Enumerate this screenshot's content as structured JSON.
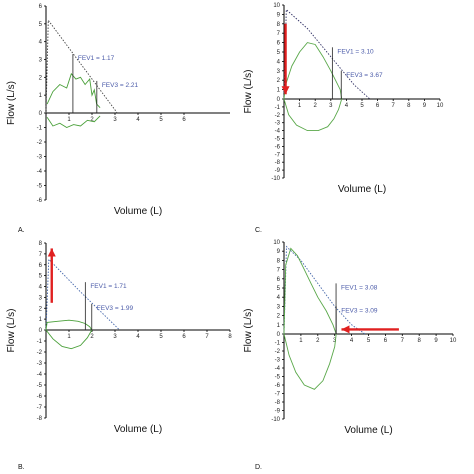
{
  "chart_data": [
    {
      "type": "line",
      "panel_label": "A.",
      "xlabel": "Volume (L)",
      "ylabel": "Flow (L/s)",
      "xlim": [
        0,
        8
      ],
      "ylim": [
        -6,
        6
      ],
      "xticks": [
        "1",
        "2",
        "3",
        "4",
        "5",
        "6"
      ],
      "yticks": [
        "6",
        "5",
        "4",
        "3",
        "2",
        "1",
        "0",
        "-1",
        "-2",
        "-3",
        "-4",
        "-5",
        "-6"
      ],
      "series": [
        {
          "style": "predicted-dotted",
          "color": "#444444",
          "x": [
            0,
            0.1,
            3.1
          ],
          "y": [
            0,
            5.2,
            0
          ]
        },
        {
          "style": "measured-expiratory",
          "color": "#4aa03a",
          "x": [
            0.05,
            0.3,
            0.6,
            0.9,
            1.1,
            1.3,
            1.5,
            1.7,
            1.9,
            2.0,
            2.1,
            2.2,
            2.35
          ],
          "y": [
            0.5,
            1.2,
            1.6,
            1.4,
            2.2,
            1.9,
            2.0,
            1.6,
            1.9,
            1.0,
            1.3,
            0.5,
            0.3
          ]
        },
        {
          "style": "measured-inspiratory",
          "color": "#4aa03a",
          "x": [
            0.05,
            0.3,
            0.6,
            0.9,
            1.2,
            1.5,
            1.8,
            2.1,
            2.35
          ],
          "y": [
            -0.3,
            -0.9,
            -0.7,
            -1.0,
            -0.8,
            -0.9,
            -0.5,
            -0.6,
            -0.2
          ]
        }
      ],
      "fev": [
        {
          "label": "FEV1 = 1.17",
          "volume": 1.17
        },
        {
          "label": "FEV3 = 2.21",
          "volume": 2.21
        }
      ],
      "annotations": []
    },
    {
      "type": "line",
      "panel_label": "C.",
      "xlabel": "Volume (L)",
      "ylabel": "Flow (L/s)",
      "xlim": [
        0,
        10
      ],
      "ylim": [
        -10,
        10
      ],
      "xticks": [
        "1",
        "2",
        "3",
        "4",
        "5",
        "6",
        "7",
        "8",
        "9",
        "10"
      ],
      "yticks": [
        "10",
        "9",
        "8",
        "7",
        "6",
        "5",
        "4",
        "3",
        "2",
        "1",
        "0",
        "-1",
        "-2",
        "-3",
        "-4",
        "-5",
        "-6",
        "-7",
        "-8",
        "-9",
        "-10"
      ],
      "series": [
        {
          "style": "predicted-dotted",
          "color": "#333366",
          "x": [
            0,
            0.15,
            1.5,
            3.0,
            4.5,
            5.5
          ],
          "y": [
            0,
            9.5,
            7.5,
            4.5,
            1.5,
            0
          ]
        },
        {
          "style": "measured-expiratory",
          "color": "#5aa84a",
          "x": [
            0,
            0.1,
            0.5,
            1.0,
            1.5,
            2.0,
            2.5,
            3.0,
            3.3,
            3.6,
            3.7
          ],
          "y": [
            0,
            1.5,
            3.5,
            5.0,
            6.0,
            5.8,
            4.5,
            3.0,
            2.0,
            1.0,
            0
          ]
        },
        {
          "style": "measured-inspiratory",
          "color": "#5aa84a",
          "x": [
            0,
            0.3,
            0.8,
            1.5,
            2.2,
            2.8,
            3.2,
            3.5,
            3.7
          ],
          "y": [
            0,
            -2.0,
            -3.3,
            -4.0,
            -4.0,
            -3.5,
            -2.5,
            -1.3,
            0
          ]
        }
      ],
      "fev": [
        {
          "label": "FEV1 = 3.10",
          "volume": 3.1
        },
        {
          "label": "FEV3 = 3.67",
          "volume": 3.67
        }
      ],
      "annotations": [
        {
          "type": "arrow",
          "color": "#e02020",
          "direction": "down",
          "x": 0.1,
          "y_from": 8.0,
          "y_to": 0.5
        }
      ]
    },
    {
      "type": "line",
      "panel_label": "B.",
      "xlabel": "Volume (L)",
      "ylabel": "Flow (L/s)",
      "xlim": [
        0,
        8
      ],
      "ylim": [
        -8,
        8
      ],
      "xticks": [
        "1",
        "2",
        "3",
        "4",
        "5",
        "6",
        "7",
        "8"
      ],
      "yticks": [
        "8",
        "7",
        "6",
        "5",
        "4",
        "3",
        "2",
        "1",
        "0",
        "-1",
        "-2",
        "-3",
        "-4",
        "-5",
        "-6",
        "-7",
        "-8"
      ],
      "series": [
        {
          "style": "predicted-dotted",
          "color": "#4466aa",
          "x": [
            0,
            0.12,
            1.5,
            3.2
          ],
          "y": [
            0,
            6.5,
            3.5,
            0
          ]
        },
        {
          "style": "measured-expiratory",
          "color": "#4aa03a",
          "x": [
            0,
            0.05,
            0.5,
            1.0,
            1.4,
            1.7,
            1.9,
            1.99
          ],
          "y": [
            0,
            0.7,
            0.8,
            0.9,
            0.8,
            0.6,
            0.3,
            0
          ]
        },
        {
          "style": "measured-inspiratory",
          "color": "#4aa03a",
          "x": [
            0,
            0.3,
            0.7,
            1.1,
            1.5,
            1.8,
            1.99
          ],
          "y": [
            0,
            -0.8,
            -1.5,
            -1.7,
            -1.4,
            -0.7,
            0
          ]
        }
      ],
      "fev": [
        {
          "label": "FEV1 = 1.71",
          "volume": 1.71
        },
        {
          "label": "FEV3 = 1.99",
          "volume": 1.99
        }
      ],
      "annotations": [
        {
          "type": "arrow",
          "color": "#e02020",
          "direction": "up",
          "x": 0.25,
          "y_from": 2.5,
          "y_to": 7.5
        }
      ]
    },
    {
      "type": "line",
      "panel_label": "D.",
      "xlabel": "Volume (L)",
      "ylabel": "Flow (L/s)",
      "xlim": [
        0,
        10
      ],
      "ylim": [
        -10,
        10
      ],
      "xticks": [
        "1",
        "2",
        "3",
        "4",
        "5",
        "6",
        "7",
        "8",
        "9",
        "10"
      ],
      "yticks": [
        "10",
        "9",
        "8",
        "7",
        "6",
        "5",
        "4",
        "3",
        "2",
        "1",
        "0",
        "-1",
        "-2",
        "-3",
        "-4",
        "-5",
        "-6",
        "-7",
        "-8",
        "-9",
        "-10"
      ],
      "series": [
        {
          "style": "predicted-dotted",
          "color": "#4466aa",
          "x": [
            0,
            0.15,
            1.0,
            2.0,
            3.0,
            4.0,
            4.8
          ],
          "y": [
            0,
            9.5,
            8.0,
            5.5,
            3.0,
            1.0,
            0
          ]
        },
        {
          "style": "measured-expiratory",
          "color": "#5aa84a",
          "x": [
            0,
            0.1,
            0.4,
            0.8,
            1.2,
            1.6,
            2.0,
            2.5,
            2.9,
            3.09
          ],
          "y": [
            0,
            7.5,
            9.3,
            8.5,
            7.0,
            5.5,
            4.0,
            2.5,
            1.0,
            0
          ]
        },
        {
          "style": "measured-inspiratory",
          "color": "#5aa84a",
          "x": [
            0,
            0.3,
            0.7,
            1.2,
            1.8,
            2.3,
            2.7,
            3.0,
            3.09
          ],
          "y": [
            0,
            -2.5,
            -4.5,
            -6.0,
            -6.5,
            -5.5,
            -3.5,
            -1.5,
            0
          ]
        }
      ],
      "fev": [
        {
          "label": "FEV1 = 3.08",
          "volume": 3.08
        },
        {
          "label": "FEV3 = 3.09",
          "volume": 3.09
        }
      ],
      "annotations": [
        {
          "type": "arrow",
          "color": "#e02020",
          "direction": "left",
          "y": 0.5,
          "x_from": 6.8,
          "x_to": 3.4
        }
      ]
    }
  ]
}
